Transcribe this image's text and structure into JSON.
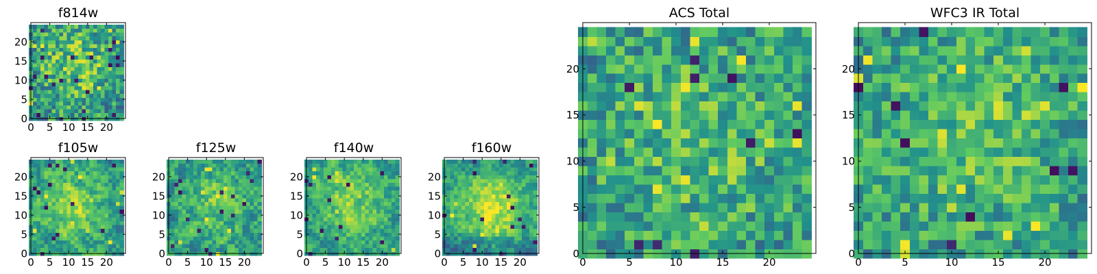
{
  "colors": {
    "background": "#ffffff",
    "frame": "#000000",
    "colormap": [
      "#440154",
      "#3b528b",
      "#21918c",
      "#5ec962",
      "#fde725"
    ]
  },
  "chart_data": [
    {
      "type": "heatmap",
      "title": "f814w",
      "grid": false,
      "xlim": [
        0,
        25
      ],
      "ylim": [
        0,
        25
      ],
      "xticks": [
        0,
        5,
        10,
        15,
        20
      ],
      "yticks": [
        0,
        5,
        10,
        15,
        20
      ],
      "size": 25,
      "seed": 814,
      "noise": 0.26,
      "smooth": 0,
      "blob": 0.22,
      "blob_center": [
        12,
        14
      ],
      "blob_radius": 7,
      "dark_pixels": 22,
      "bright_pixels": 18
    },
    {
      "type": "heatmap",
      "title": "f105w",
      "grid": false,
      "xlim": [
        0,
        25
      ],
      "ylim": [
        0,
        25
      ],
      "xticks": [
        0,
        5,
        10,
        15,
        20
      ],
      "yticks": [
        0,
        5,
        10,
        15,
        20
      ],
      "size": 25,
      "seed": 105,
      "noise": 0.3,
      "smooth": 1,
      "blob": 0.28,
      "blob_center": [
        11,
        12
      ],
      "blob_radius": 7,
      "dark_pixels": 14,
      "bright_pixels": 10
    },
    {
      "type": "heatmap",
      "title": "f125w",
      "grid": false,
      "xlim": [
        0,
        25
      ],
      "ylim": [
        0,
        25
      ],
      "xticks": [
        0,
        5,
        10,
        15,
        20
      ],
      "yticks": [
        0,
        5,
        10,
        15,
        20
      ],
      "size": 25,
      "seed": 125,
      "noise": 0.32,
      "smooth": 1,
      "blob": 0.22,
      "blob_center": [
        12,
        13
      ],
      "blob_radius": 7,
      "dark_pixels": 16,
      "bright_pixels": 10
    },
    {
      "type": "heatmap",
      "title": "f140w",
      "grid": false,
      "xlim": [
        0,
        25
      ],
      "ylim": [
        0,
        25
      ],
      "xticks": [
        0,
        5,
        10,
        15,
        20
      ],
      "yticks": [
        0,
        5,
        10,
        15,
        20
      ],
      "size": 25,
      "seed": 140,
      "noise": 0.28,
      "smooth": 1,
      "blob": 0.3,
      "blob_center": [
        12,
        13
      ],
      "blob_radius": 7,
      "dark_pixels": 12,
      "bright_pixels": 8
    },
    {
      "type": "heatmap",
      "title": "f160w",
      "grid": false,
      "xlim": [
        0,
        25
      ],
      "ylim": [
        0,
        25
      ],
      "xticks": [
        0,
        5,
        10,
        15,
        20
      ],
      "yticks": [
        0,
        5,
        10,
        15,
        20
      ],
      "size": 25,
      "seed": 160,
      "noise": 0.26,
      "smooth": 1,
      "blob": 0.45,
      "blob_center": [
        13,
        12
      ],
      "blob_radius": 6,
      "dark_pixels": 14,
      "bright_pixels": 6,
      "dark_bottom": true
    },
    {
      "type": "heatmap",
      "title": "ACS Total",
      "grid": false,
      "xlim": [
        0,
        25
      ],
      "ylim": [
        0,
        25
      ],
      "xticks": [
        0,
        5,
        10,
        15,
        20
      ],
      "yticks": [
        0,
        5,
        10,
        15,
        20
      ],
      "size": 25,
      "seed": 31,
      "noise": 0.24,
      "smooth": 0,
      "blob": 0.18,
      "blob_center": [
        12,
        12
      ],
      "blob_radius": 8,
      "dark_pixels": 10,
      "bright_pixels": 14
    },
    {
      "type": "heatmap",
      "title": "WFC3 IR Total",
      "grid": false,
      "xlim": [
        0,
        25
      ],
      "ylim": [
        0,
        25
      ],
      "xticks": [
        0,
        5,
        10,
        15,
        20
      ],
      "yticks": [
        0,
        5,
        10,
        15,
        20
      ],
      "size": 25,
      "seed": 3,
      "noise": 0.22,
      "smooth": 0,
      "blob": 0.2,
      "blob_center": [
        12,
        13
      ],
      "blob_radius": 8,
      "dark_pixels": 9,
      "bright_pixels": 16
    }
  ]
}
